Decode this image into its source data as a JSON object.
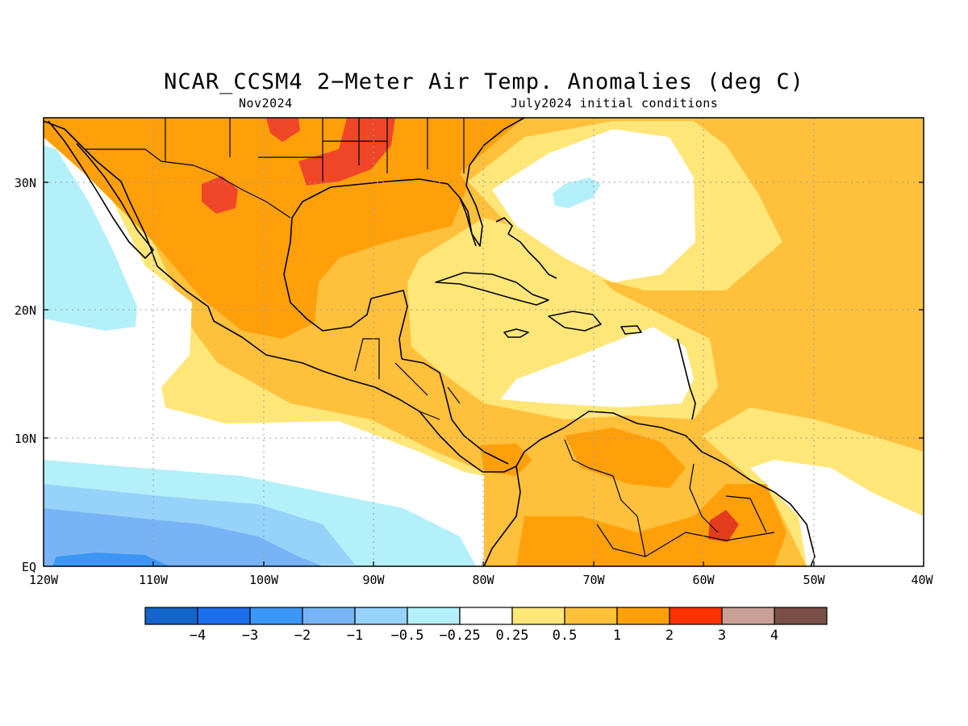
{
  "title": "NCAR_CCSM4 2−Meter Air Temp. Anomalies (deg C)",
  "subtitle_left": "Nov2024",
  "subtitle_right": "July2024 initial conditions",
  "lat_labels": [
    "30N",
    "20N",
    "10N",
    "EQ"
  ],
  "lon_labels": [
    "120W",
    "110W",
    "100W",
    "90W",
    "80W",
    "70W",
    "60W",
    "50W",
    "40W"
  ],
  "colorbar": {
    "colors": [
      "#1564c8",
      "#1e6eeb",
      "#3c96f5",
      "#78b4f5",
      "#96d2fa",
      "#b4f0fa",
      "#ffffff",
      "#ffe678",
      "#ffc03c",
      "#ffa00a",
      "#ff3200",
      "#c8a096",
      "#7a5046"
    ],
    "labels": [
      "−4",
      "−3",
      "−2",
      "−1",
      "−0.5",
      "−0.25",
      "0.25",
      "0.5",
      "1",
      "2",
      "3",
      "4"
    ]
  },
  "colors": {
    "deep_blue": "#3c96f5",
    "mid_blue": "#78b4f5",
    "light_blue": "#96d2fa",
    "pale_blue": "#b4f0fa",
    "pale_yellow": "#ffe678",
    "light_orange": "#ffc03c",
    "orange": "#ffa00a",
    "red": "#f04628",
    "dark_red": "#e63c1e",
    "coast": "#000000",
    "grid": "#9a9a9a"
  }
}
